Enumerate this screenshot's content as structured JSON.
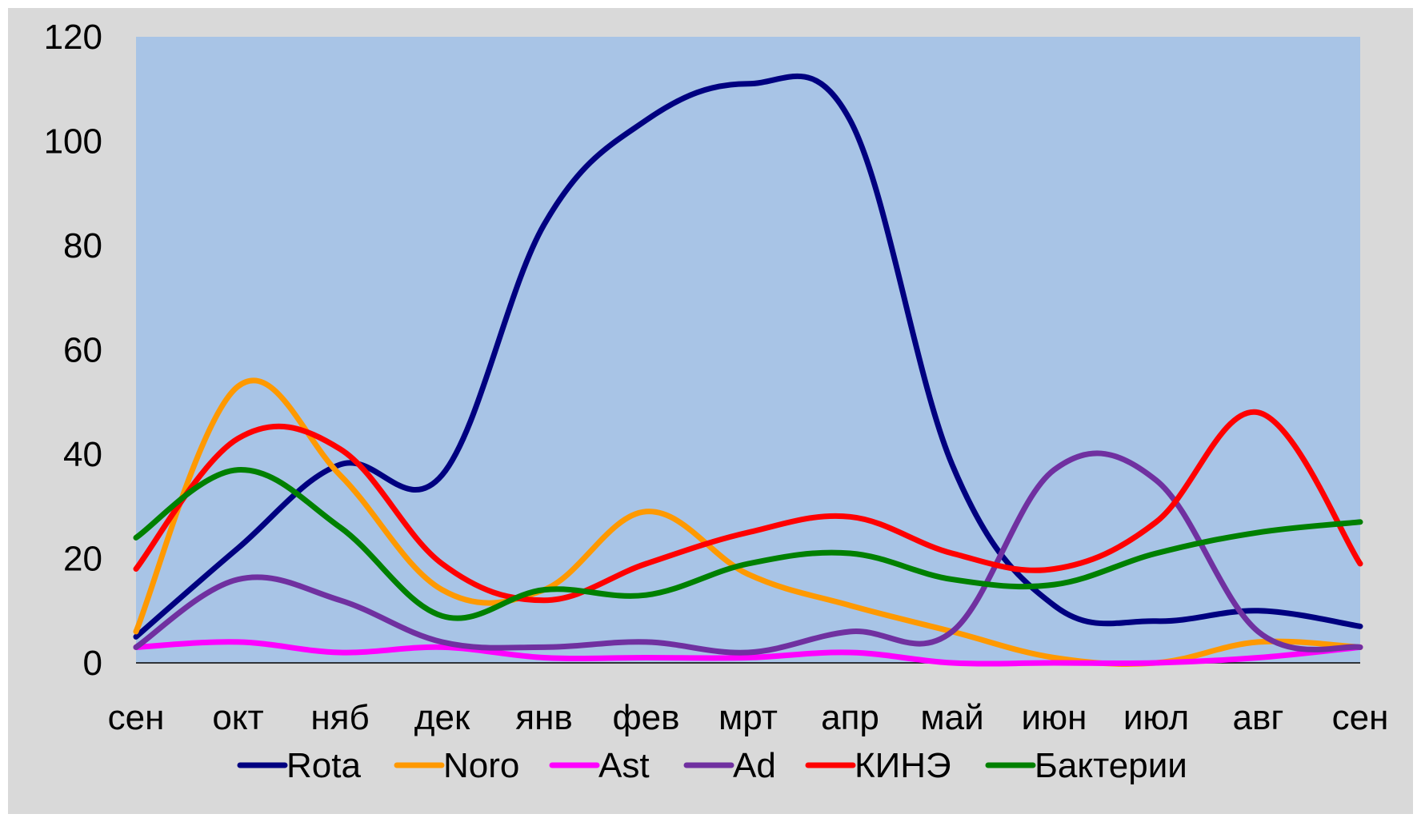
{
  "colors": {
    "background": "#ffffff",
    "chart_area": "#d9d9d9",
    "plot_area": "#a8c4e6",
    "axis": "#000000"
  },
  "chart_data": {
    "type": "line",
    "smooth": true,
    "categories": [
      "сен",
      "окт",
      "няб",
      "дек",
      "янв",
      "фев",
      "мрт",
      "апр",
      "май",
      "июн",
      "июл",
      "авг",
      "сен"
    ],
    "ylim": [
      0,
      120
    ],
    "yticks": [
      0,
      20,
      40,
      60,
      80,
      100,
      120
    ],
    "grid": false,
    "legend_position": "bottom",
    "series": [
      {
        "name": "Rota",
        "color": "#000080",
        "values": [
          5,
          22,
          38,
          36,
          84,
          104,
          111,
          104,
          38,
          11,
          8,
          10,
          7
        ]
      },
      {
        "name": "Noro",
        "color": "#ff9900",
        "values": [
          6,
          53,
          36,
          14,
          14,
          29,
          17,
          11,
          6,
          1,
          0,
          4,
          3
        ]
      },
      {
        "name": "Ast",
        "color": "#ff00ff",
        "values": [
          3,
          4,
          2,
          3,
          1,
          1,
          1,
          2,
          0,
          0,
          0,
          1,
          3
        ]
      },
      {
        "name": "Ad",
        "color": "#7030a0",
        "values": [
          3,
          16,
          12,
          4,
          3,
          4,
          2,
          6,
          6,
          37,
          35,
          6,
          3
        ]
      },
      {
        "name": "КИНЭ",
        "color": "#ff0000",
        "values": [
          18,
          43,
          41,
          19,
          12,
          19,
          25,
          28,
          21,
          18,
          27,
          48,
          19
        ]
      },
      {
        "name": "Бактерии",
        "color": "#008000",
        "values": [
          24,
          37,
          26,
          9,
          14,
          13,
          19,
          21,
          16,
          15,
          21,
          25,
          27
        ]
      }
    ]
  }
}
